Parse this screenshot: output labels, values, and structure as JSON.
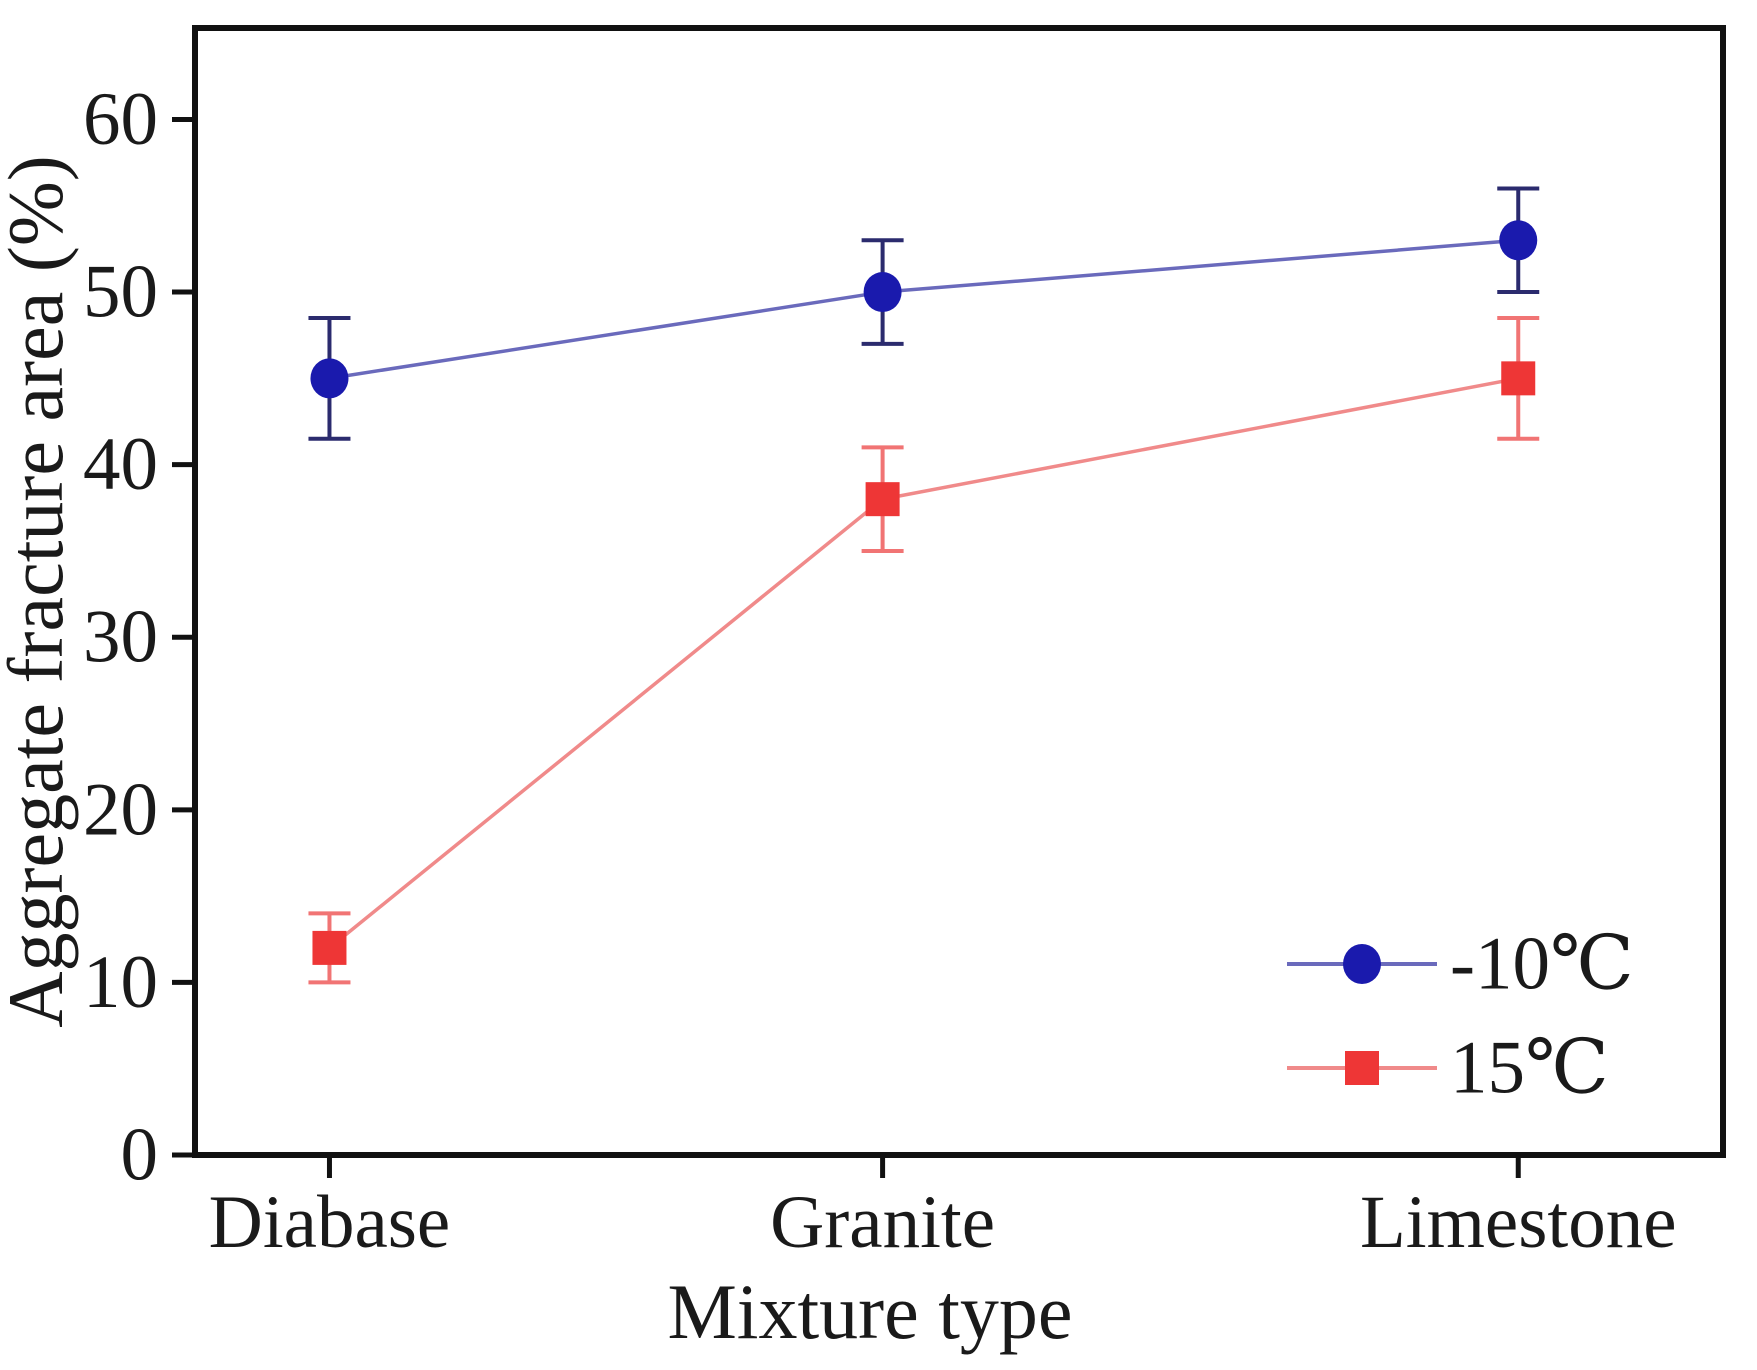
{
  "figure": {
    "background": "#ffffff",
    "frame_color": "#111111",
    "text_color": "#1a1a1a"
  },
  "chart_data": {
    "type": "line",
    "title": "",
    "xlabel": "Mixture type",
    "ylabel": "Aggregate fracture area (%)",
    "categories": [
      "Diabase",
      "Granite",
      "Limestone"
    ],
    "yticks": [
      0,
      10,
      20,
      30,
      40,
      50,
      60
    ],
    "ylim": [
      0,
      65.3
    ],
    "grid": false,
    "legend_position": "lower right",
    "series": [
      {
        "name": "-10℃",
        "marker": "circle",
        "values": [
          45,
          50,
          53
        ],
        "errors": [
          3.5,
          3,
          3
        ],
        "marker_color": "#1a1aad",
        "line_color": "#6a6abc",
        "error_color": "#2b2b6e"
      },
      {
        "name": "15℃",
        "marker": "square",
        "values": [
          12,
          38,
          45
        ],
        "errors": [
          2,
          3,
          3.5
        ],
        "marker_color": "#ee3636",
        "line_color": "#f08a8a",
        "error_color": "#f17474"
      }
    ]
  }
}
